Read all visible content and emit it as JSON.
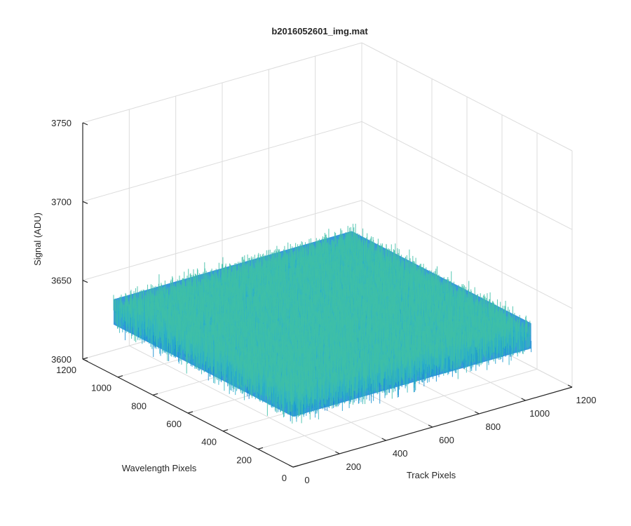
{
  "chart_data": {
    "type": "surface",
    "title": "b2016052601_img.mat",
    "xlabel": "Track Pixels",
    "ylabel": "Wavelength Pixels",
    "zlabel": "Signal (ADU)",
    "xlim": [
      0,
      1200
    ],
    "ylim": [
      0,
      1200
    ],
    "zlim": [
      3600,
      3750
    ],
    "xticks": [
      0,
      200,
      400,
      600,
      800,
      1000,
      1200
    ],
    "yticks": [
      0,
      200,
      400,
      600,
      800,
      1000,
      1200
    ],
    "zticks": [
      3600,
      3650,
      3700,
      3750
    ],
    "xtick_labels": [
      "0",
      "200",
      "400",
      "600",
      "800",
      "1000",
      "1200"
    ],
    "ytick_labels": [
      "0",
      "200",
      "400",
      "600",
      "800",
      "1000",
      "1200"
    ],
    "ztick_labels": [
      "3600",
      "3650",
      "3700",
      "3750"
    ],
    "surface_extent": {
      "x": [
        0,
        1024
      ],
      "y": [
        0,
        1024
      ]
    },
    "surface_mean": 3640,
    "surface_spread": [
      3615,
      3680
    ],
    "grid": true,
    "colormap": "parula",
    "colors": {
      "low": "#0a6ed8",
      "mid": "#1e9ed0",
      "high": "#3fbfa8",
      "axis": "#262626",
      "grid": "#dcdcdc"
    }
  }
}
